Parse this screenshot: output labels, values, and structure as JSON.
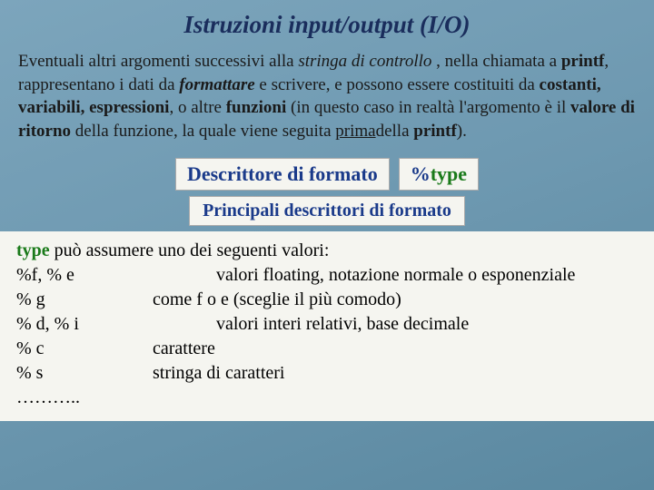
{
  "title": "Istruzioni input/output (I/O)",
  "paragraph": {
    "p1": "Eventuali altri argomenti successivi alla ",
    "p2": "stringa di controllo",
    "p3": " , nella chiamata a ",
    "p4": "printf",
    "p5": ", rappresentano i dati da ",
    "p6": "formattare",
    "p7": " e scrivere, e possono essere costituiti da ",
    "p8": "costanti, variabili, espressioni",
    "p9": ", o altre ",
    "p10": "funzioni",
    "p11": " (in questo caso in realtà l'argomento è il ",
    "p12": "valore di ritorno",
    "p13": " della funzione, la quale viene seguita ",
    "p14": "prima",
    "p15": "della ",
    "p16": "printf",
    "p17": ")."
  },
  "box1_blue": "Descrittore  di formato",
  "box2_pct": "%",
  "box2_type": "type",
  "center_box": "Principali descrittori di formato",
  "defs": {
    "intro_a": "type",
    "intro_b": " può assumere uno dei seguenti valori:",
    "r1k": "%f, % e",
    "r1v": "valori floating, notazione normale o esponenziale",
    "r2k": "% g",
    "r2v": "come f o e (sceglie il più comodo)",
    "r3k": "% d, % i",
    "r3v": "valori interi relativi, base decimale",
    "r4k": "% c",
    "r4v": "carattere",
    "r5k": "% s",
    "r5v": "stringa di caratteri",
    "r6k": "……….."
  },
  "colors": {
    "background_start": "#7ca5bc",
    "background_end": "#5a88a0",
    "title_color": "#1a2d5c",
    "box_bg": "#f5f5f0",
    "blue": "#1a3a8a",
    "green": "#1a7a1a"
  }
}
